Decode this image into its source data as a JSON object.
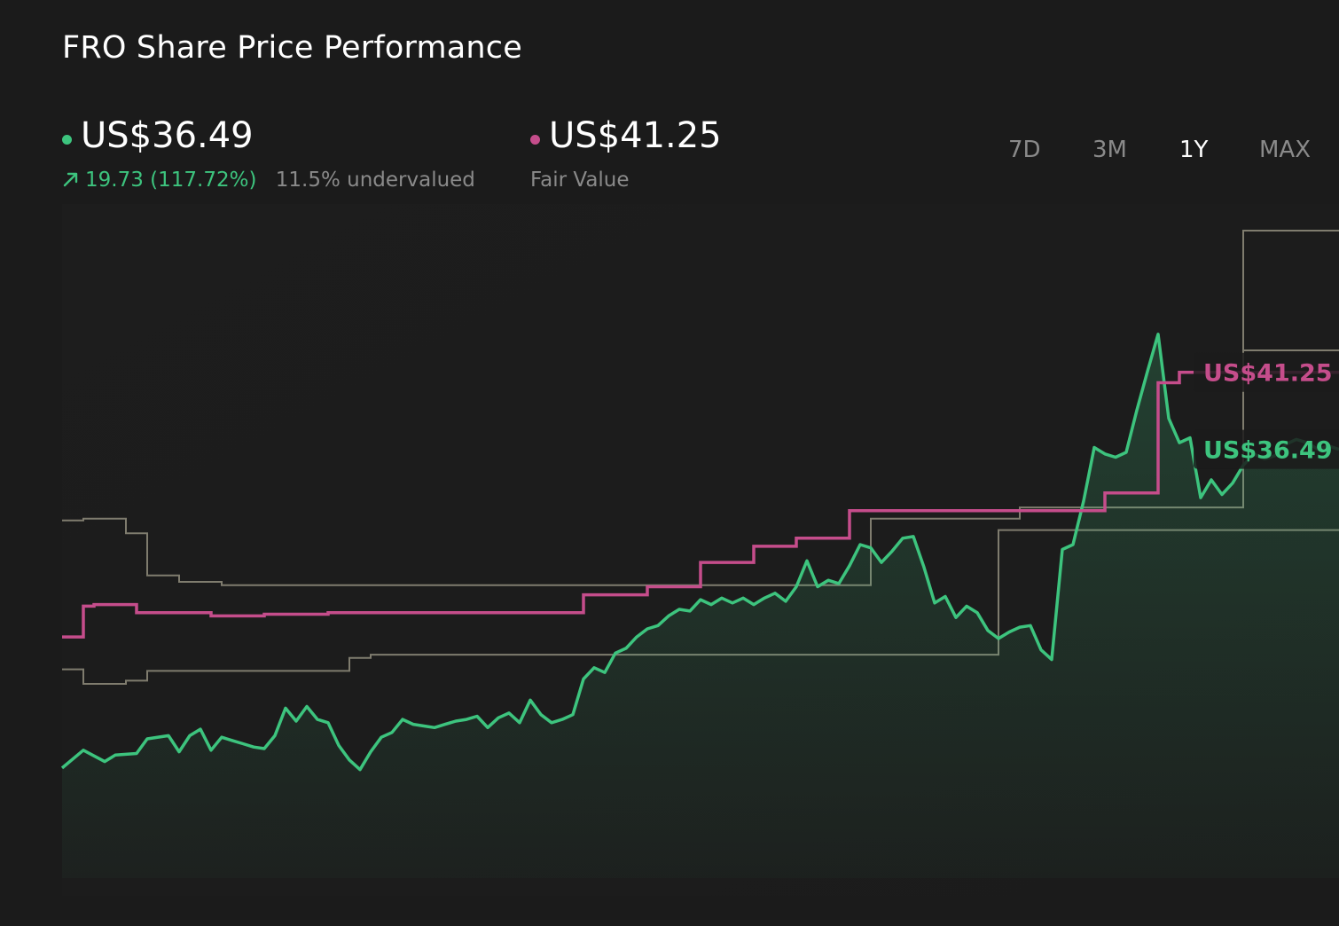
{
  "title": "FRO Share Price Performance",
  "price": {
    "value": "US$36.49",
    "change": "19.73 (117.72%)",
    "valuation": "11.5% undervalued",
    "color": "#3dc47e"
  },
  "fair_value": {
    "value": "US$41.25",
    "label": "Fair Value",
    "color": "#c54d8b"
  },
  "periods": [
    {
      "label": "7D",
      "active": false
    },
    {
      "label": "3M",
      "active": false
    },
    {
      "label": "1Y",
      "active": true
    },
    {
      "label": "MAX",
      "active": false
    }
  ],
  "chart_data": {
    "type": "line",
    "ylim": [
      10,
      50
    ],
    "series": [
      {
        "key": "price",
        "type": "area-line",
        "color": "#3dc47e",
        "points": [
          [
            0,
            16.8
          ],
          [
            2,
            17.9
          ],
          [
            4,
            17.2
          ],
          [
            5,
            17.6
          ],
          [
            7,
            17.7
          ],
          [
            8,
            18.6
          ],
          [
            10,
            18.8
          ],
          [
            11,
            17.8
          ],
          [
            12,
            18.8
          ],
          [
            13,
            19.2
          ],
          [
            14,
            17.9
          ],
          [
            15,
            18.7
          ],
          [
            16,
            18.5
          ],
          [
            17,
            18.3
          ],
          [
            18,
            18.1
          ],
          [
            19,
            18.0
          ],
          [
            20,
            18.8
          ],
          [
            21,
            20.5
          ],
          [
            22,
            19.7
          ],
          [
            23,
            20.6
          ],
          [
            24,
            19.8
          ],
          [
            25,
            19.6
          ],
          [
            26,
            18.2
          ],
          [
            27,
            17.3
          ],
          [
            28,
            16.7
          ],
          [
            29,
            17.8
          ],
          [
            30,
            18.7
          ],
          [
            31,
            19.0
          ],
          [
            32,
            19.8
          ],
          [
            33,
            19.5
          ],
          [
            34,
            19.4
          ],
          [
            35,
            19.3
          ],
          [
            36,
            19.5
          ],
          [
            37,
            19.7
          ],
          [
            38,
            19.8
          ],
          [
            39,
            20.0
          ],
          [
            40,
            19.3
          ],
          [
            41,
            19.9
          ],
          [
            42,
            20.2
          ],
          [
            43,
            19.6
          ],
          [
            44,
            21.0
          ],
          [
            45,
            20.1
          ],
          [
            46,
            19.6
          ],
          [
            47,
            19.8
          ],
          [
            48,
            20.1
          ],
          [
            49,
            22.3
          ],
          [
            50,
            23.0
          ],
          [
            51,
            22.7
          ],
          [
            52,
            23.9
          ],
          [
            53,
            24.2
          ],
          [
            54,
            24.9
          ],
          [
            55,
            25.4
          ],
          [
            56,
            25.6
          ],
          [
            57,
            26.2
          ],
          [
            58,
            26.6
          ],
          [
            59,
            26.5
          ],
          [
            60,
            27.2
          ],
          [
            61,
            26.9
          ],
          [
            62,
            27.3
          ],
          [
            63,
            27.0
          ],
          [
            64,
            27.3
          ],
          [
            65,
            26.9
          ],
          [
            66,
            27.3
          ],
          [
            67,
            27.6
          ],
          [
            68,
            27.1
          ],
          [
            69,
            28.0
          ],
          [
            70,
            29.6
          ],
          [
            71,
            28.0
          ],
          [
            72,
            28.4
          ],
          [
            73,
            28.2
          ],
          [
            74,
            29.3
          ],
          [
            75,
            30.6
          ],
          [
            76,
            30.4
          ],
          [
            77,
            29.5
          ],
          [
            78,
            30.2
          ],
          [
            79,
            31.0
          ],
          [
            80,
            31.1
          ],
          [
            81,
            29.2
          ],
          [
            82,
            27.0
          ],
          [
            83,
            27.4
          ],
          [
            84,
            26.1
          ],
          [
            85,
            26.8
          ],
          [
            86,
            26.4
          ],
          [
            87,
            25.3
          ],
          [
            88,
            24.8
          ],
          [
            89,
            25.2
          ],
          [
            90,
            25.5
          ],
          [
            91,
            25.6
          ],
          [
            92,
            24.1
          ],
          [
            93,
            23.5
          ],
          [
            94,
            30.3
          ],
          [
            95,
            30.6
          ],
          [
            96,
            33.3
          ],
          [
            97,
            36.6
          ],
          [
            98,
            36.2
          ],
          [
            99,
            36.0
          ],
          [
            100,
            36.3
          ],
          [
            101,
            38.9
          ],
          [
            102,
            41.3
          ],
          [
            103,
            43.6
          ],
          [
            104,
            38.4
          ],
          [
            105,
            36.9
          ],
          [
            106,
            37.2
          ],
          [
            107,
            33.5
          ],
          [
            108,
            34.6
          ],
          [
            109,
            33.7
          ],
          [
            110,
            34.4
          ],
          [
            111,
            35.5
          ],
          [
            112,
            36.2
          ],
          [
            113,
            35.9
          ],
          [
            114,
            36.1
          ],
          [
            115,
            36.8
          ],
          [
            116,
            37.1
          ],
          [
            117,
            36.9
          ],
          [
            118,
            36.5
          ],
          [
            119,
            36.7
          ],
          [
            120,
            36.49
          ]
        ]
      },
      {
        "key": "fair_value",
        "type": "step",
        "color": "#c54d8b",
        "points": [
          [
            0,
            24.9
          ],
          [
            2,
            26.8
          ],
          [
            3,
            26.9
          ],
          [
            7,
            26.4
          ],
          [
            14,
            26.2
          ],
          [
            19,
            26.3
          ],
          [
            25,
            26.4
          ],
          [
            49,
            26.4
          ],
          [
            49,
            27.5
          ],
          [
            55,
            28.0
          ],
          [
            60,
            29.5
          ],
          [
            65,
            30.5
          ],
          [
            69,
            31.0
          ],
          [
            74,
            32.7
          ],
          [
            94,
            32.7
          ],
          [
            98,
            33.8
          ],
          [
            103,
            34.5
          ],
          [
            103,
            40.6
          ],
          [
            105,
            41.25
          ],
          [
            120,
            41.25
          ]
        ]
      },
      {
        "key": "band_high",
        "type": "step",
        "color": "#7f7c6e",
        "points": [
          [
            0,
            32.1
          ],
          [
            2,
            32.2
          ],
          [
            6,
            32.2
          ],
          [
            6,
            31.3
          ],
          [
            8,
            31.3
          ],
          [
            8,
            28.7
          ],
          [
            11,
            28.7
          ],
          [
            11,
            28.3
          ],
          [
            15,
            28.3
          ],
          [
            15,
            28.1
          ],
          [
            76,
            28.1
          ],
          [
            76,
            32.2
          ],
          [
            90,
            32.2
          ],
          [
            90,
            32.9
          ],
          [
            111,
            32.9
          ],
          [
            111,
            42.6
          ],
          [
            120,
            42.6
          ]
        ]
      },
      {
        "key": "band_low",
        "type": "step",
        "color": "#7f7c6e",
        "points": [
          [
            0,
            22.9
          ],
          [
            2,
            22.9
          ],
          [
            2,
            22.0
          ],
          [
            6,
            22.0
          ],
          [
            6,
            22.2
          ],
          [
            8,
            22.2
          ],
          [
            8,
            22.8
          ],
          [
            27,
            22.8
          ],
          [
            27,
            23.6
          ],
          [
            29,
            23.6
          ],
          [
            29,
            23.8
          ],
          [
            88,
            23.8
          ],
          [
            88,
            31.5
          ],
          [
            120,
            31.5
          ]
        ]
      },
      {
        "key": "band_top",
        "type": "step",
        "color": "#7f7c6e",
        "points": [
          [
            111,
            42.6
          ],
          [
            111,
            50.0
          ],
          [
            120,
            50.0
          ]
        ]
      }
    ],
    "labels": [
      {
        "text": "US$41.25",
        "series": "fair_value",
        "value": 41.25
      },
      {
        "text": "US$36.49",
        "series": "price",
        "value": 36.49
      }
    ]
  }
}
